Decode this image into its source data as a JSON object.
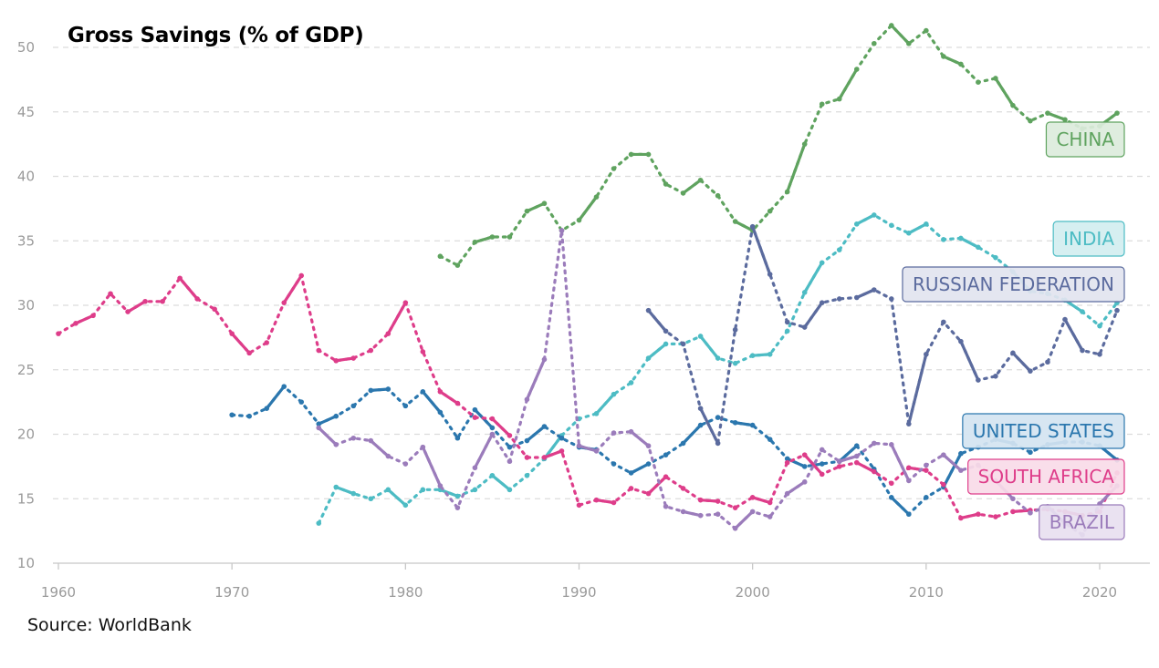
{
  "chart_data": {
    "type": "line",
    "title": "Gross Savings (% of GDP)",
    "source": "Source: WorldBank",
    "xlabel": "",
    "ylabel": "",
    "xlim": [
      1960,
      2022
    ],
    "ylim": [
      10,
      52
    ],
    "x_ticks": [
      1960,
      1970,
      1980,
      1990,
      2000,
      2010,
      2020
    ],
    "y_ticks": [
      10,
      15,
      20,
      25,
      30,
      35,
      40,
      45,
      50
    ],
    "grid": "horizontal-dashed",
    "legend_placement": "right-end-labels",
    "series": [
      {
        "name": "CHINA",
        "color": "#5fa35f",
        "label_fill": "#dcebdc",
        "x": [
          1982,
          1983,
          1984,
          1985,
          1986,
          1987,
          1988,
          1989,
          1990,
          1991,
          1992,
          1993,
          1994,
          1995,
          1996,
          1997,
          1998,
          1999,
          2000,
          2001,
          2002,
          2003,
          2004,
          2005,
          2006,
          2007,
          2008,
          2009,
          2010,
          2011,
          2012,
          2013,
          2014,
          2015,
          2016,
          2017,
          2018,
          2019,
          2020,
          2021
        ],
        "y": [
          33.8,
          33.1,
          34.9,
          35.3,
          35.3,
          37.3,
          37.9,
          35.8,
          36.6,
          38.4,
          40.6,
          41.7,
          41.7,
          39.4,
          38.7,
          39.7,
          38.5,
          36.5,
          35.8,
          37.3,
          38.8,
          42.5,
          45.6,
          46.0,
          48.3,
          50.3,
          51.7,
          50.3,
          51.3,
          49.3,
          48.7,
          47.3,
          47.6,
          45.5,
          44.3,
          44.9,
          44.4,
          43.7,
          43.9,
          44.9
        ]
      },
      {
        "name": "INDIA",
        "color": "#4dbcc4",
        "label_fill": "#d2eef0",
        "x": [
          1975,
          1976,
          1977,
          1978,
          1979,
          1980,
          1981,
          1982,
          1983,
          1984,
          1985,
          1986,
          1987,
          1988,
          1989,
          1990,
          1991,
          1992,
          1993,
          1994,
          1995,
          1996,
          1997,
          1998,
          1999,
          2000,
          2001,
          2002,
          2003,
          2004,
          2005,
          2006,
          2007,
          2008,
          2009,
          2010,
          2011,
          2012,
          2013,
          2014,
          2015,
          2016,
          2017,
          2018,
          2019,
          2020,
          2021
        ],
        "y": [
          13.1,
          15.9,
          15.4,
          15.0,
          15.7,
          14.5,
          15.7,
          15.7,
          15.2,
          15.7,
          16.8,
          15.7,
          16.8,
          18.1,
          19.9,
          21.2,
          21.6,
          23.1,
          24.0,
          25.9,
          27.0,
          27.0,
          27.6,
          25.9,
          25.5,
          26.1,
          26.2,
          28.0,
          31.0,
          33.3,
          34.3,
          36.3,
          37.0,
          36.2,
          35.6,
          36.3,
          35.1,
          35.2,
          34.5,
          33.7,
          32.6,
          31.1,
          30.9,
          30.4,
          29.5,
          28.4,
          30.2
        ]
      },
      {
        "name": "RUSSIAN FEDERATION",
        "color": "#5b6b9e",
        "label_fill": "#e2e4ef",
        "x": [
          1994,
          1995,
          1996,
          1997,
          1998,
          1999,
          2000,
          2001,
          2002,
          2003,
          2004,
          2005,
          2006,
          2007,
          2008,
          2009,
          2010,
          2011,
          2012,
          2013,
          2014,
          2015,
          2016,
          2017,
          2018,
          2019,
          2020,
          2021
        ],
        "y": [
          29.6,
          28.0,
          27.0,
          22.0,
          19.3,
          28.1,
          36.1,
          32.4,
          28.7,
          28.3,
          30.2,
          30.5,
          30.6,
          31.2,
          30.5,
          20.8,
          26.2,
          28.7,
          27.2,
          24.2,
          24.5,
          26.3,
          24.9,
          25.6,
          28.9,
          26.5,
          26.2,
          29.6
        ]
      },
      {
        "name": "UNITED STATES",
        "color": "#2b77ae",
        "label_fill": "#d4e4f1",
        "x": [
          1970,
          1971,
          1972,
          1973,
          1974,
          1975,
          1976,
          1977,
          1978,
          1979,
          1980,
          1981,
          1982,
          1983,
          1984,
          1985,
          1986,
          1987,
          1988,
          1989,
          1990,
          1991,
          1992,
          1993,
          1994,
          1995,
          1996,
          1997,
          1998,
          1999,
          2000,
          2001,
          2002,
          2003,
          2004,
          2005,
          2006,
          2007,
          2008,
          2009,
          2010,
          2011,
          2012,
          2013,
          2014,
          2015,
          2016,
          2017,
          2018,
          2019,
          2020,
          2021
        ],
        "y": [
          21.5,
          21.4,
          22.0,
          23.7,
          22.5,
          20.8,
          21.4,
          22.2,
          23.4,
          23.5,
          22.2,
          23.3,
          21.7,
          19.7,
          21.9,
          20.5,
          19.0,
          19.5,
          20.6,
          19.7,
          19.0,
          18.8,
          17.7,
          17.0,
          17.7,
          18.4,
          19.3,
          20.7,
          21.3,
          20.9,
          20.7,
          19.6,
          18.1,
          17.5,
          17.7,
          17.9,
          19.1,
          17.3,
          15.1,
          13.8,
          15.1,
          15.9,
          18.5,
          19.0,
          19.6,
          19.3,
          18.6,
          19.2,
          19.4,
          19.4,
          19.1,
          18.0
        ]
      },
      {
        "name": "SOUTH AFRICA",
        "color": "#de3d8a",
        "label_fill": "#f8dbe8",
        "x": [
          1960,
          1961,
          1962,
          1963,
          1964,
          1965,
          1966,
          1967,
          1968,
          1969,
          1970,
          1971,
          1972,
          1973,
          1974,
          1975,
          1976,
          1977,
          1978,
          1979,
          1980,
          1981,
          1982,
          1983,
          1984,
          1985,
          1986,
          1987,
          1988,
          1989,
          1990,
          1991,
          1992,
          1993,
          1994,
          1995,
          1996,
          1997,
          1998,
          1999,
          2000,
          2001,
          2002,
          2003,
          2004,
          2005,
          2006,
          2007,
          2008,
          2009,
          2010,
          2011,
          2012,
          2013,
          2014,
          2015,
          2016,
          2017,
          2018,
          2019,
          2020,
          2021
        ],
        "y": [
          27.8,
          28.6,
          29.2,
          30.9,
          29.5,
          30.3,
          30.3,
          32.1,
          30.5,
          29.7,
          27.8,
          26.3,
          27.1,
          30.2,
          32.3,
          26.5,
          25.7,
          25.9,
          26.5,
          27.8,
          30.2,
          26.4,
          23.3,
          22.4,
          21.3,
          21.2,
          19.9,
          18.2,
          18.2,
          18.7,
          14.5,
          14.9,
          14.7,
          15.8,
          15.4,
          16.7,
          15.8,
          14.9,
          14.8,
          14.3,
          15.1,
          14.7,
          17.8,
          18.4,
          16.9,
          17.5,
          17.8,
          17.1,
          16.2,
          17.4,
          17.2,
          16.1,
          13.5,
          13.8,
          13.6,
          14.0,
          14.1,
          14.2,
          14.0,
          13.7,
          14.0,
          17.0
        ]
      },
      {
        "name": "BRAZIL",
        "color": "#9b7cbb",
        "label_fill": "#e8e0f0",
        "x": [
          1975,
          1976,
          1977,
          1978,
          1979,
          1980,
          1981,
          1982,
          1983,
          1984,
          1985,
          1986,
          1987,
          1988,
          1989,
          1990,
          1991,
          1992,
          1993,
          1994,
          1995,
          1996,
          1997,
          1998,
          1999,
          2000,
          2001,
          2002,
          2003,
          2004,
          2005,
          2006,
          2007,
          2008,
          2009,
          2010,
          2011,
          2012,
          2013,
          2014,
          2015,
          2016,
          2017,
          2018,
          2019,
          2020,
          2021
        ],
        "y": [
          20.5,
          19.2,
          19.7,
          19.5,
          18.3,
          17.7,
          19.0,
          16.0,
          14.3,
          17.4,
          20.0,
          17.9,
          22.7,
          25.8,
          35.8,
          19.1,
          18.7,
          20.1,
          20.2,
          19.1,
          14.4,
          14.0,
          13.7,
          13.8,
          12.7,
          14.0,
          13.6,
          15.4,
          16.3,
          18.8,
          17.9,
          18.3,
          19.3,
          19.2,
          16.4,
          17.6,
          18.4,
          17.2,
          17.6,
          16.4,
          15.0,
          13.9,
          14.4,
          13.1,
          12.2,
          14.6,
          16.0
        ]
      }
    ]
  }
}
